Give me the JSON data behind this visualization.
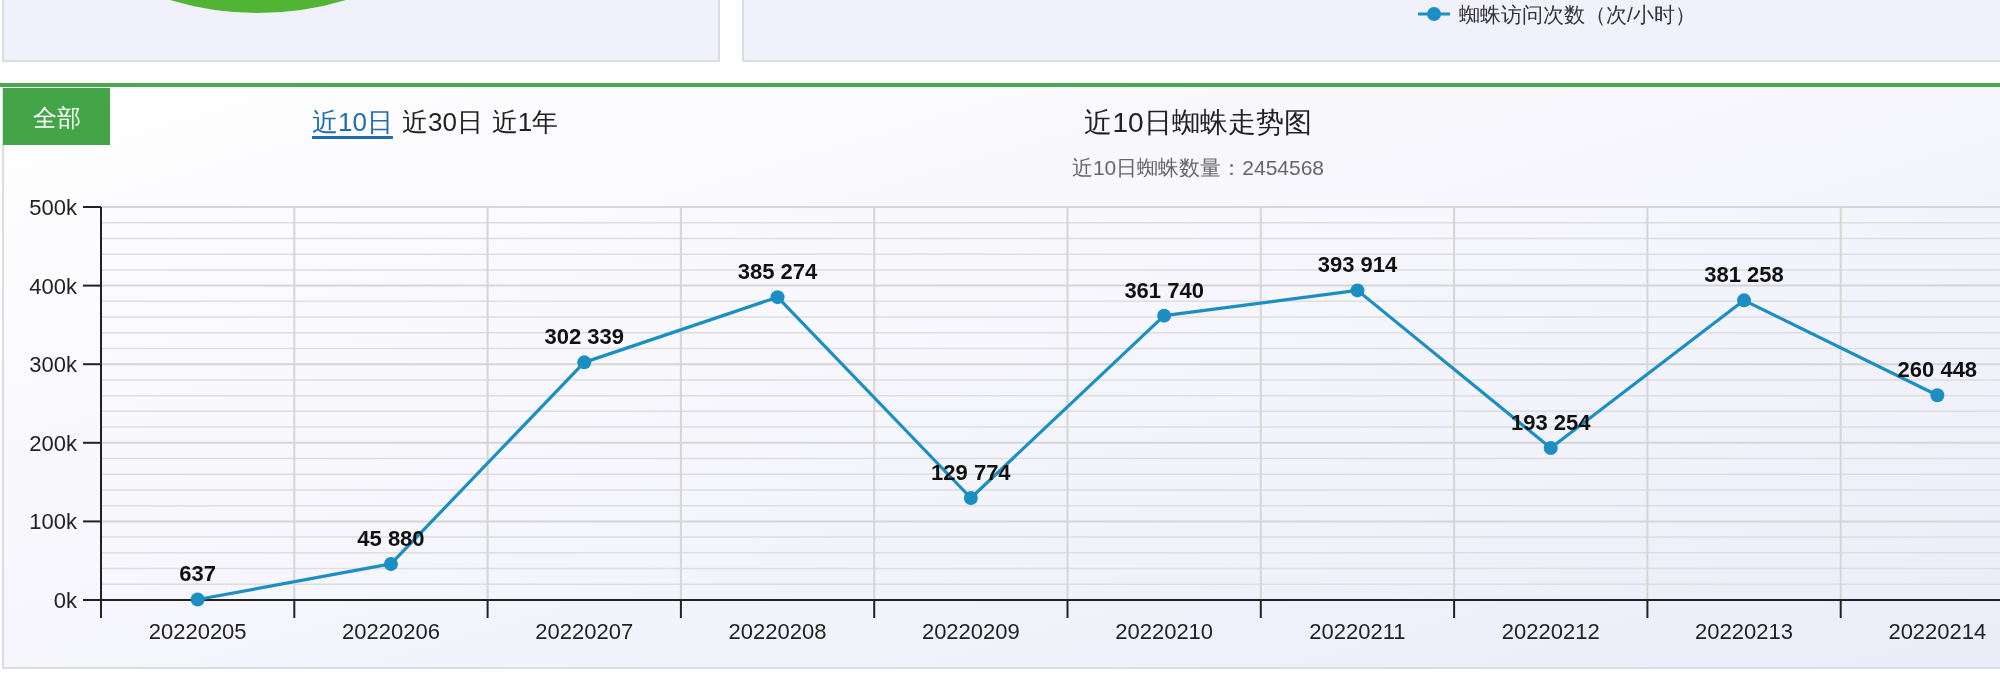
{
  "chart_data": [
    {
      "type": "other",
      "annotations": [
        "蜘蛛访问次数（次/小时）"
      ]
    },
    {
      "type": "line",
      "title": "近10日蜘蛛走势图",
      "subtitle": "近10日蜘蛛数量：2454568",
      "annotations": [
        "全部",
        "近10日",
        "近30日",
        "近1年"
      ],
      "categories": [
        "20220205",
        "20220206",
        "20220207",
        "20220208",
        "20220209",
        "20220210",
        "20220211",
        "20220212",
        "20220213",
        "20220214"
      ],
      "series": [
        {
          "color": "#1b8fc2",
          "values": [
            637,
            45880,
            302339,
            385274,
            129774,
            361740,
            393914,
            193254,
            381258,
            260448
          ],
          "value_labels": [
            "637",
            "45 880",
            "302 339",
            "385 274",
            "129 774",
            "361 740",
            "393 914",
            "193 254",
            "381 258",
            "260 448"
          ]
        }
      ],
      "ylim": [
        0,
        500000
      ],
      "yticks": [
        {
          "value": 0,
          "label": "0k"
        },
        {
          "value": 100000,
          "label": "100k"
        },
        {
          "value": 200000,
          "label": "200k"
        },
        {
          "value": 300000,
          "label": "300k"
        },
        {
          "value": 400000,
          "label": "400k"
        },
        {
          "value": 500000,
          "label": "500k"
        }
      ],
      "grid": true,
      "marker": "circle",
      "line_style": "solid"
    }
  ]
}
